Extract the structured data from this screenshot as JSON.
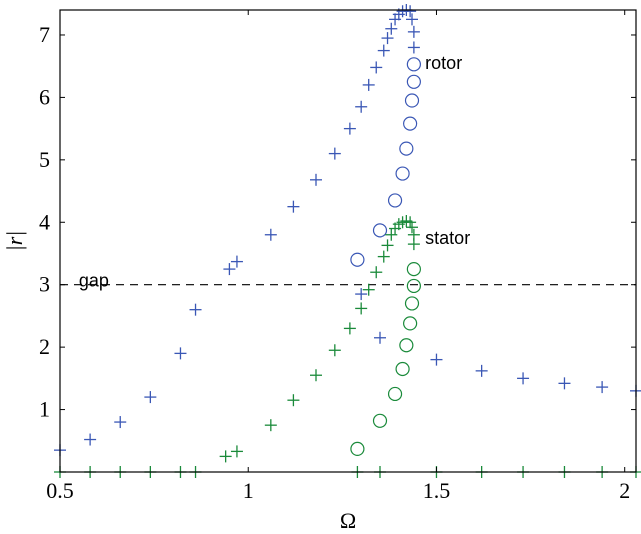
{
  "chart_data": {
    "type": "scatter",
    "title": "",
    "xlabel": "Ω",
    "ylabel": "|r|",
    "xlim": [
      0.5,
      2.03
    ],
    "ylim": [
      0,
      7.4
    ],
    "xticks": [
      0.5,
      1,
      1.5,
      2
    ],
    "xtick_labels": [
      "0.5",
      "1",
      "1.5",
      "2"
    ],
    "yticks": [
      1,
      2,
      3,
      4,
      5,
      6,
      7
    ],
    "ytick_labels": [
      "1",
      "2",
      "3",
      "4",
      "5",
      "6",
      "7"
    ],
    "grid": false,
    "legend": "none",
    "annotations": [
      {
        "text": "rotor",
        "x": 1.47,
        "y": 6.55
      },
      {
        "text": "stator",
        "x": 1.47,
        "y": 3.75
      },
      {
        "text": "gap",
        "x": 0.55,
        "y": 3.07
      }
    ],
    "reference_lines": [
      {
        "orientation": "horizontal",
        "y": 3,
        "style": "dashed",
        "color": "#000000"
      }
    ],
    "series": [
      {
        "marker": "plus",
        "color": "#3a57b5",
        "points": [
          [
            0.5,
            0.35
          ],
          [
            0.58,
            0.52
          ],
          [
            0.66,
            0.8
          ],
          [
            0.74,
            1.2
          ],
          [
            0.82,
            1.9
          ],
          [
            0.86,
            2.6
          ],
          [
            0.95,
            3.25
          ],
          [
            0.97,
            3.37
          ],
          [
            1.06,
            3.8
          ],
          [
            1.12,
            4.25
          ],
          [
            1.18,
            4.68
          ],
          [
            1.23,
            5.1
          ],
          [
            1.27,
            5.5
          ],
          [
            1.3,
            5.85
          ],
          [
            1.32,
            6.2
          ],
          [
            1.34,
            6.48
          ],
          [
            1.36,
            6.75
          ],
          [
            1.37,
            6.95
          ],
          [
            1.38,
            7.1
          ],
          [
            1.39,
            7.25
          ],
          [
            1.4,
            7.33
          ],
          [
            1.41,
            7.38
          ],
          [
            1.42,
            7.4
          ],
          [
            1.43,
            7.38
          ],
          [
            1.435,
            7.25
          ],
          [
            1.44,
            7.05
          ],
          [
            1.44,
            6.8
          ],
          [
            1.3,
            2.85
          ],
          [
            1.35,
            2.15
          ],
          [
            1.5,
            1.8
          ],
          [
            1.62,
            1.62
          ],
          [
            1.73,
            1.5
          ],
          [
            1.84,
            1.42
          ],
          [
            1.94,
            1.36
          ],
          [
            2.03,
            1.3
          ]
        ]
      },
      {
        "marker": "circle",
        "color": "#3a57b5",
        "points": [
          [
            1.44,
            6.53
          ],
          [
            1.44,
            6.25
          ],
          [
            1.435,
            5.95
          ],
          [
            1.43,
            5.58
          ],
          [
            1.42,
            5.18
          ],
          [
            1.41,
            4.78
          ],
          [
            1.39,
            4.35
          ],
          [
            1.35,
            3.87
          ],
          [
            1.29,
            3.4
          ]
        ]
      },
      {
        "marker": "plus",
        "color": "#1a8a3a",
        "points": [
          [
            0.5,
            0.0
          ],
          [
            0.58,
            0.0
          ],
          [
            0.66,
            0.0
          ],
          [
            0.74,
            0.0
          ],
          [
            0.82,
            0.0
          ],
          [
            0.86,
            0.0
          ],
          [
            0.94,
            0.25
          ],
          [
            0.97,
            0.33
          ],
          [
            1.06,
            0.75
          ],
          [
            1.12,
            1.15
          ],
          [
            1.18,
            1.55
          ],
          [
            1.23,
            1.95
          ],
          [
            1.27,
            2.3
          ],
          [
            1.3,
            2.62
          ],
          [
            1.32,
            2.92
          ],
          [
            1.34,
            3.2
          ],
          [
            1.36,
            3.45
          ],
          [
            1.37,
            3.63
          ],
          [
            1.38,
            3.8
          ],
          [
            1.39,
            3.9
          ],
          [
            1.4,
            3.97
          ],
          [
            1.41,
            4.0
          ],
          [
            1.42,
            4.02
          ],
          [
            1.43,
            4.0
          ],
          [
            1.435,
            3.92
          ],
          [
            1.44,
            3.8
          ],
          [
            1.44,
            3.65
          ],
          [
            1.29,
            0.0
          ],
          [
            1.35,
            0.0
          ],
          [
            1.5,
            0.0
          ],
          [
            1.62,
            0.0
          ],
          [
            1.73,
            0.0
          ],
          [
            1.84,
            0.0
          ],
          [
            1.94,
            0.0
          ],
          [
            2.03,
            0.0
          ]
        ]
      },
      {
        "marker": "circle",
        "color": "#1a8a3a",
        "points": [
          [
            1.44,
            3.25
          ],
          [
            1.44,
            2.98
          ],
          [
            1.435,
            2.7
          ],
          [
            1.43,
            2.38
          ],
          [
            1.42,
            2.03
          ],
          [
            1.41,
            1.65
          ],
          [
            1.39,
            1.25
          ],
          [
            1.35,
            0.82
          ],
          [
            1.29,
            0.37
          ]
        ]
      }
    ]
  }
}
